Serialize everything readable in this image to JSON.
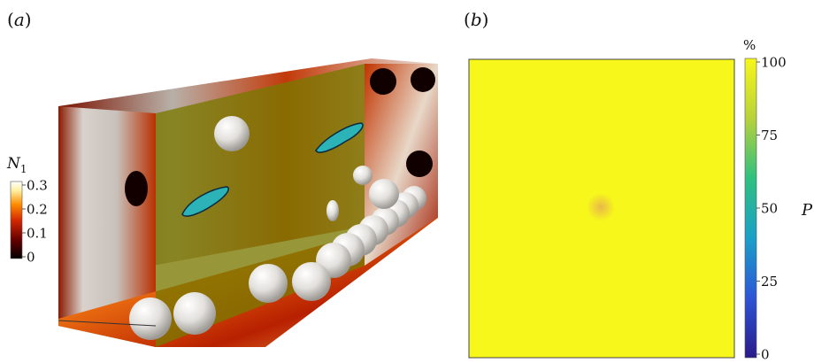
{
  "panel_a": {
    "label_open": "(",
    "label_letter": "a",
    "label_close": ")",
    "colorbar": {
      "title_var": "N",
      "title_sub": "1",
      "ticks": [
        "0.3",
        "0.2",
        "0.1",
        "0"
      ],
      "tick_values": [
        0.3,
        0.2,
        0.1,
        0
      ],
      "colors": [
        "#000000",
        "#6a0000",
        "#d42a00",
        "#ff8a00",
        "#fff0a0",
        "#ffffff"
      ]
    }
  },
  "panel_b": {
    "label_open": "(",
    "label_letter": "b",
    "label_close": ")",
    "field_color": "#f7f71b",
    "spot_color": "#e9b84a",
    "colorbar": {
      "unit": "%",
      "variable": "P",
      "ticks": [
        "100",
        "75",
        "50",
        "25",
        "0"
      ],
      "tick_values": [
        100,
        75,
        50,
        25,
        0
      ],
      "colors": [
        "#2a1a8a",
        "#2d55d6",
        "#1aa0c8",
        "#2fc080",
        "#b8d23a",
        "#f7f71b"
      ]
    }
  }
}
